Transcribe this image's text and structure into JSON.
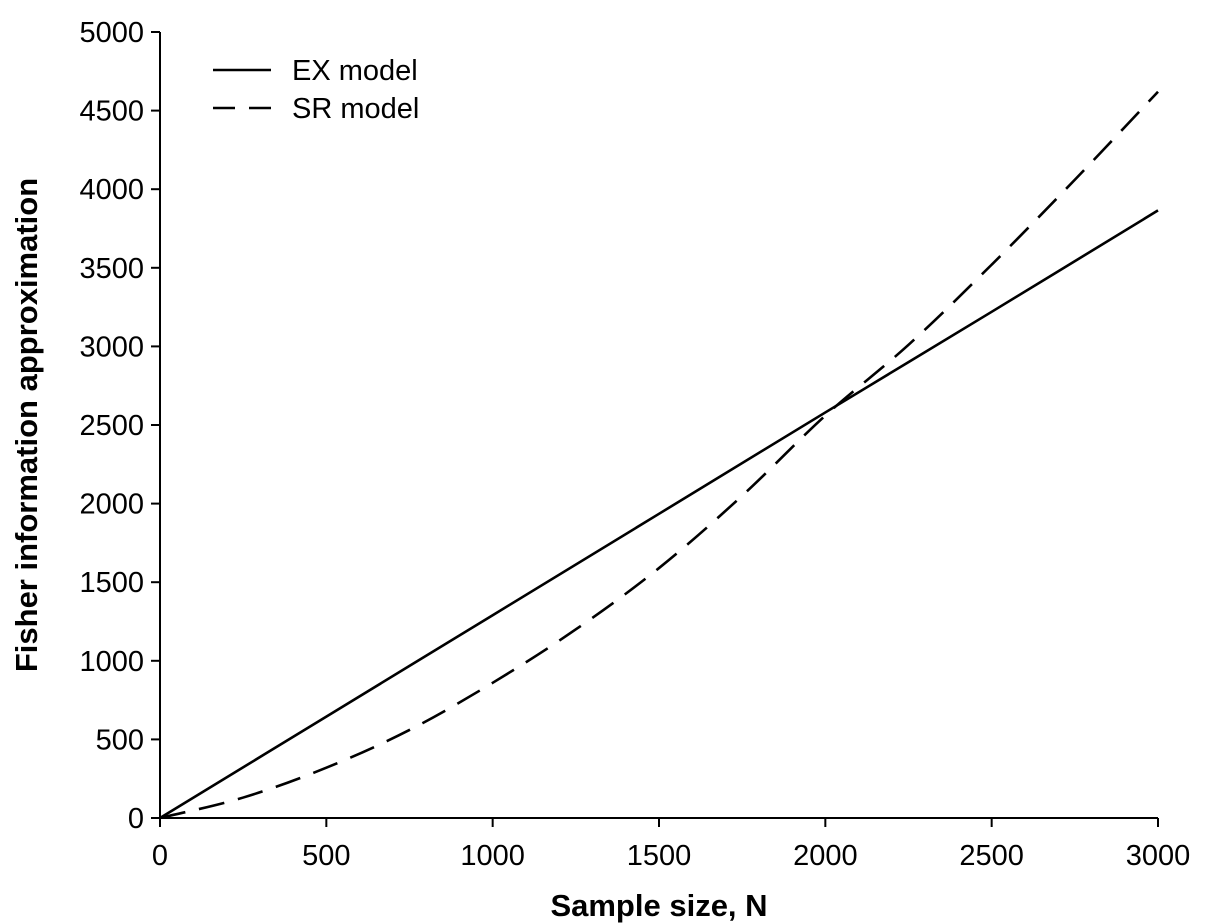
{
  "chart_data": {
    "type": "line",
    "title": "",
    "xlabel": "Sample size, N",
    "ylabel": "Fisher information approximation",
    "xlim": [
      0,
      3000
    ],
    "ylim": [
      0,
      5000
    ],
    "xticks": [
      0,
      500,
      1000,
      1500,
      2000,
      2500,
      3000
    ],
    "yticks": [
      0,
      500,
      1000,
      1500,
      2000,
      2500,
      3000,
      3500,
      4000,
      4500,
      5000
    ],
    "grid": false,
    "legend_position": "top-left",
    "series": [
      {
        "name": "EX model",
        "style": "solid",
        "x": [
          0,
          500,
          1000,
          1500,
          2000,
          2500,
          3000
        ],
        "y": [
          0,
          645,
          1290,
          1935,
          2580,
          3220,
          3865
        ]
      },
      {
        "name": "SR model",
        "style": "dashed",
        "x": [
          0,
          250,
          500,
          750,
          1000,
          1250,
          1500,
          1750,
          2000,
          2250,
          2500,
          2750,
          3000
        ],
        "y": [
          0,
          130,
          320,
          560,
          860,
          1200,
          1590,
          2050,
          2560,
          3010,
          3520,
          4060,
          4620
        ]
      }
    ]
  }
}
